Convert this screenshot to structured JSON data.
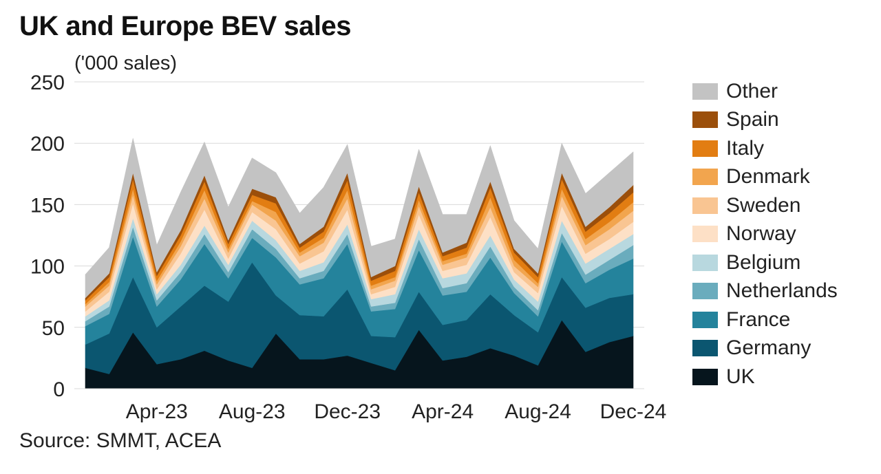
{
  "title": "UK and Europe BEV sales",
  "unit_label": "('000 sales)",
  "source": "Source: SMMT, ACEA",
  "chart_data": {
    "type": "area",
    "stacked": true,
    "title": "UK and Europe BEV sales",
    "ylabel": "('000 sales)",
    "ylim": [
      0,
      250
    ],
    "yticks": [
      0,
      50,
      100,
      150,
      200,
      250
    ],
    "grid": true,
    "legend_position": "right",
    "x": [
      "Jan-23",
      "Feb-23",
      "Mar-23",
      "Apr-23",
      "May-23",
      "Jun-23",
      "Jul-23",
      "Aug-23",
      "Sep-23",
      "Oct-23",
      "Nov-23",
      "Dec-23",
      "Jan-24",
      "Feb-24",
      "Mar-24",
      "Apr-24",
      "May-24",
      "Jun-24",
      "Jul-24",
      "Aug-24",
      "Sep-24",
      "Oct-24",
      "Nov-24",
      "Dec-24"
    ],
    "xtick_labels": [
      "Apr-23",
      "Aug-23",
      "Dec-23",
      "Apr-24",
      "Aug-24",
      "Dec-24"
    ],
    "series": [
      {
        "name": "UK",
        "color": "#06151d",
        "values": [
          17,
          12,
          46,
          20,
          24,
          31,
          23,
          17,
          45,
          24,
          24,
          27,
          21,
          15,
          48,
          23,
          26,
          33,
          27,
          19,
          56,
          30,
          38,
          43
        ]
      },
      {
        "name": "Germany",
        "color": "#0b5670",
        "values": [
          19,
          33,
          45,
          30,
          43,
          53,
          48,
          86,
          31,
          36,
          35,
          54,
          22,
          27,
          31,
          29,
          30,
          44,
          33,
          27,
          35,
          36,
          36,
          34
        ]
      },
      {
        "name": "France",
        "color": "#24839c",
        "values": [
          15,
          16,
          33,
          17,
          22,
          34,
          19,
          20,
          31,
          25,
          31,
          37,
          20,
          23,
          34,
          24,
          23,
          30,
          18,
          13,
          29,
          20,
          23,
          29
        ]
      },
      {
        "name": "Netherlands",
        "color": "#6aacbd",
        "values": [
          4,
          6,
          8,
          5,
          6,
          8,
          5,
          7,
          7,
          5,
          6,
          8,
          4,
          5,
          9,
          6,
          7,
          9,
          5,
          5,
          7,
          7,
          8,
          11
        ]
      },
      {
        "name": "Belgium",
        "color": "#b8d8df",
        "values": [
          4,
          5,
          7,
          5,
          6,
          7,
          6,
          7,
          7,
          6,
          7,
          8,
          6,
          7,
          8,
          8,
          8,
          9,
          6,
          7,
          10,
          9,
          9,
          9
        ]
      },
      {
        "name": "Norway",
        "color": "#fde0c6",
        "values": [
          4,
          7,
          12,
          4,
          9,
          13,
          5,
          7,
          9,
          6,
          9,
          12,
          4,
          6,
          12,
          6,
          7,
          15,
          6,
          7,
          12,
          8,
          8,
          10
        ]
      },
      {
        "name": "Sweden",
        "color": "#f9c592",
        "values": [
          4,
          5,
          7,
          4,
          6,
          9,
          5,
          6,
          7,
          6,
          7,
          9,
          4,
          5,
          7,
          5,
          6,
          8,
          5,
          5,
          8,
          7,
          8,
          9
        ]
      },
      {
        "name": "Denmark",
        "color": "#f2a54e",
        "values": [
          2,
          3,
          5,
          3,
          4,
          7,
          3,
          3,
          7,
          3,
          4,
          7,
          3,
          3,
          5,
          3,
          3,
          8,
          5,
          3,
          6,
          5,
          6,
          7
        ]
      },
      {
        "name": "Italy",
        "color": "#e27d12",
        "values": [
          3,
          4,
          8,
          4,
          5,
          7,
          4,
          5,
          7,
          4,
          5,
          8,
          4,
          5,
          6,
          4,
          5,
          8,
          6,
          5,
          8,
          6,
          7,
          8
        ]
      },
      {
        "name": "Spain",
        "color": "#9b4f0b",
        "values": [
          2,
          3,
          5,
          3,
          4,
          5,
          3,
          5,
          5,
          3,
          4,
          6,
          3,
          4,
          5,
          3,
          4,
          5,
          3,
          3,
          5,
          4,
          5,
          6
        ]
      },
      {
        "name": "Other",
        "color": "#c3c3c3",
        "values": [
          19,
          21,
          28,
          22,
          31,
          27,
          27,
          25,
          20,
          25,
          32,
          23,
          25,
          22,
          30,
          31,
          23,
          29,
          23,
          20,
          24,
          27,
          28,
          27
        ]
      }
    ]
  }
}
